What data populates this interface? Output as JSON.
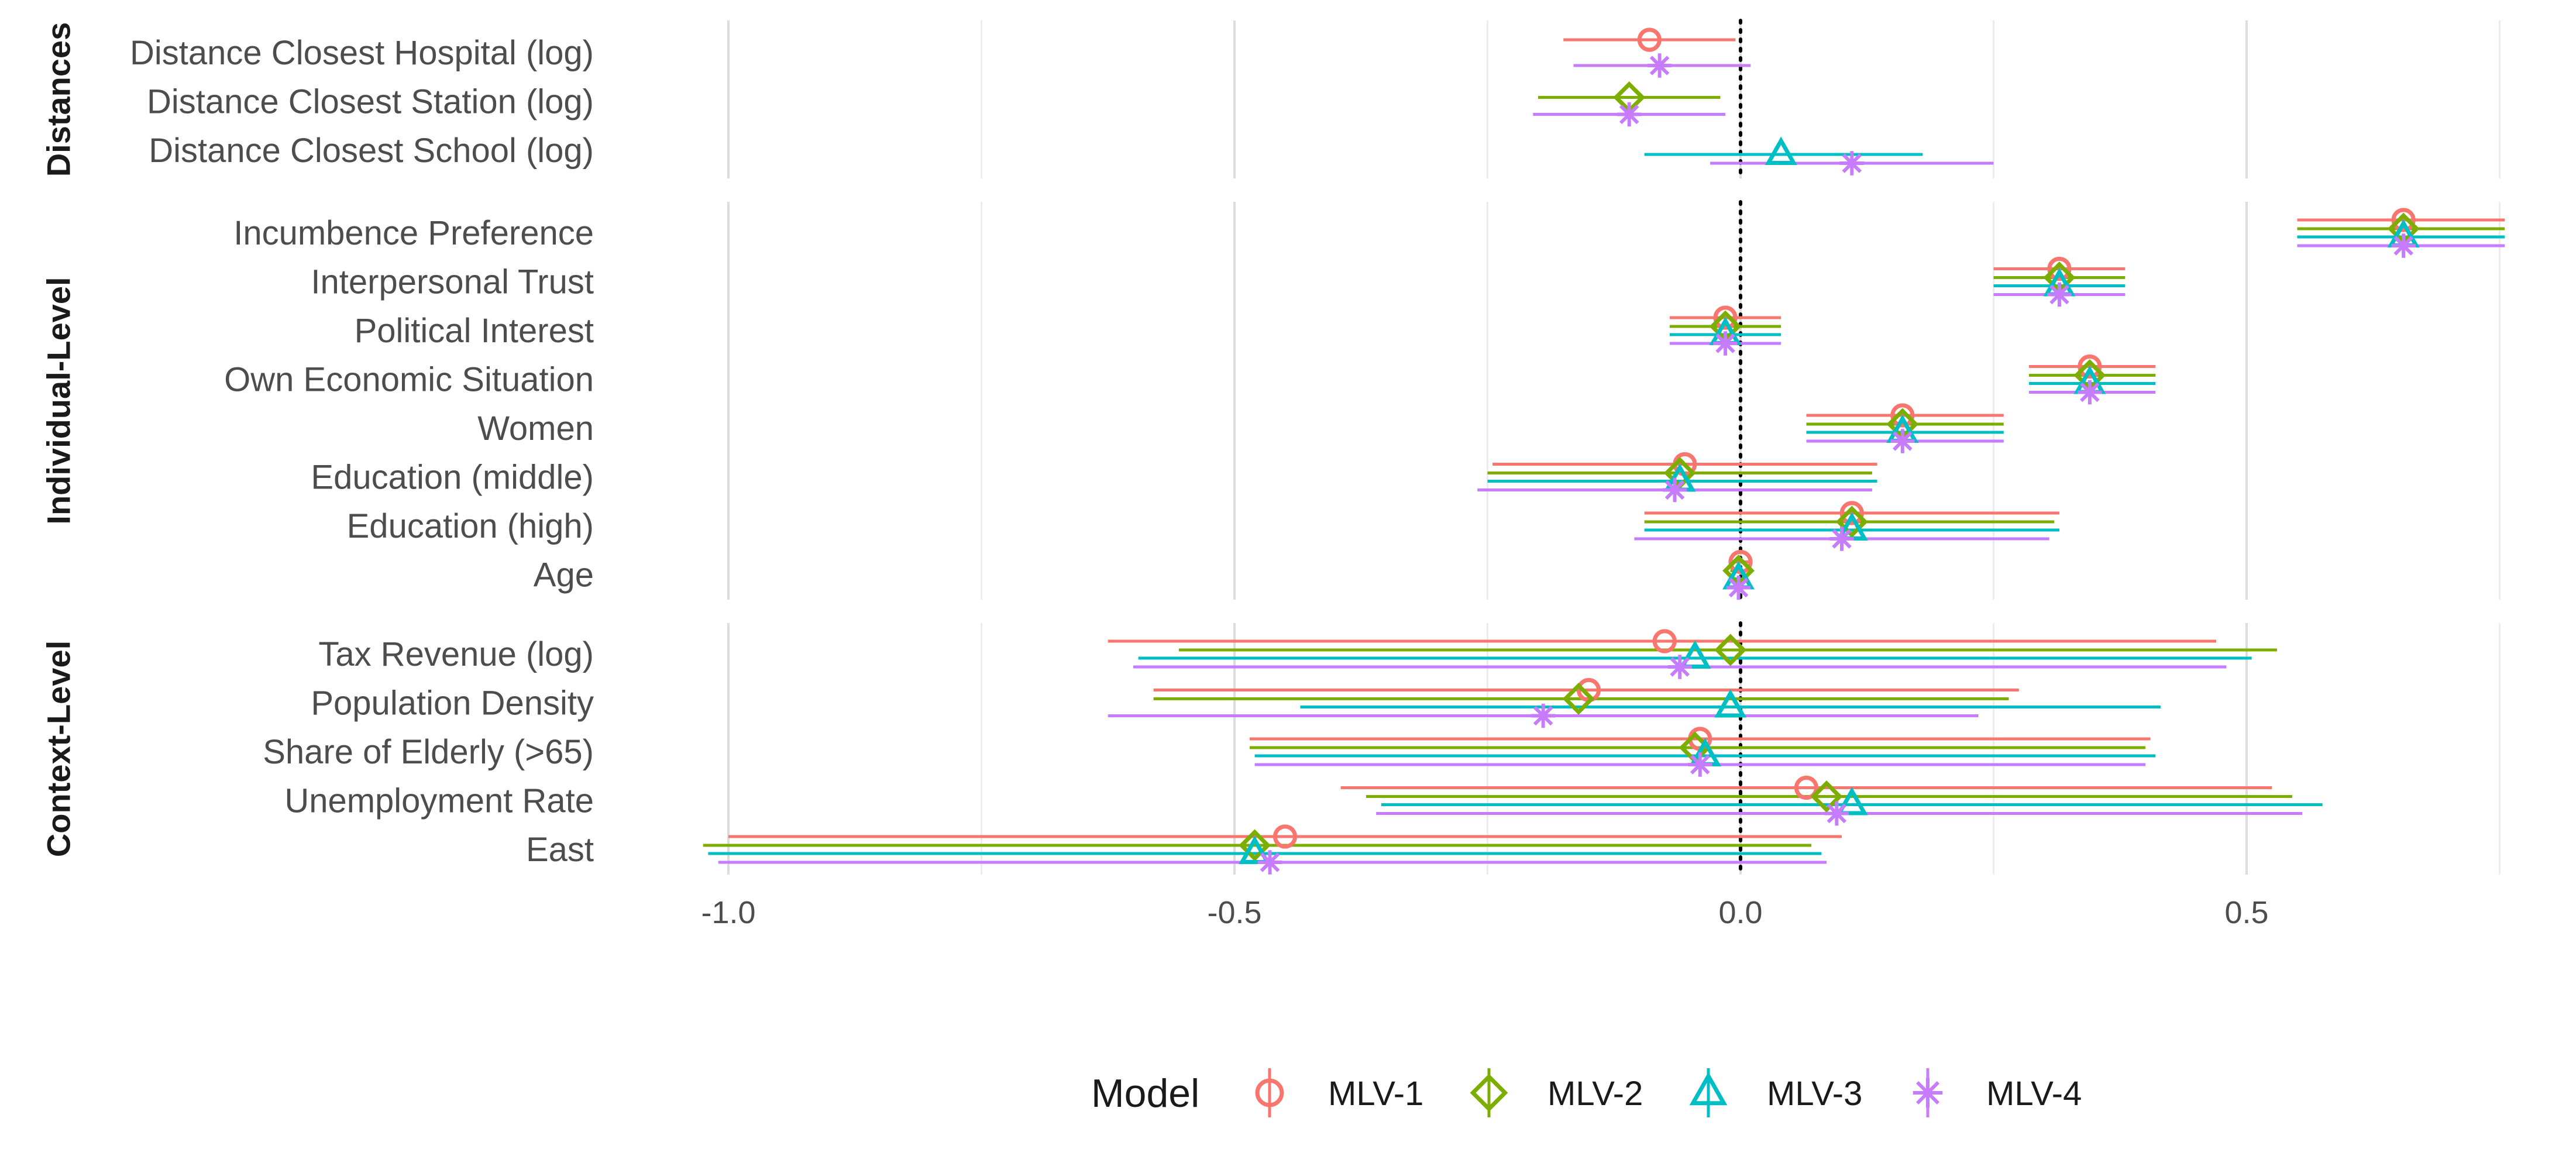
{
  "chart_data": {
    "type": "coefficient-plot",
    "xlim": [
      -1.07,
      0.78
    ],
    "x_ticks": [
      -1.0,
      -0.5,
      0.0,
      0.5
    ],
    "x_tick_labels": [
      "-1.0",
      "-0.5",
      "0.0",
      "0.5"
    ],
    "minor_gridlines": [
      -0.75,
      -0.25,
      0.25,
      0.75
    ],
    "reference_line": 0.0,
    "legend": {
      "title": "Model",
      "position": "bottom"
    },
    "series": [
      {
        "name": "MLV-1",
        "color": "#F8766D",
        "shape": "circle"
      },
      {
        "name": "MLV-2",
        "color": "#7CAE00",
        "shape": "diamond"
      },
      {
        "name": "MLV-3",
        "color": "#00BFC4",
        "shape": "triangle"
      },
      {
        "name": "MLV-4",
        "color": "#C77CFF",
        "shape": "asterisk"
      }
    ],
    "facets": [
      {
        "label": "Distances",
        "terms": [
          {
            "label": "Distance Closest Hospital (log)",
            "estimates": [
              {
                "model": "MLV-1",
                "est": -0.09,
                "lo": -0.175,
                "hi": -0.005
              },
              {
                "model": "MLV-4",
                "est": -0.08,
                "lo": -0.165,
                "hi": 0.01
              }
            ]
          },
          {
            "label": "Distance Closest Station (log)",
            "estimates": [
              {
                "model": "MLV-2",
                "est": -0.11,
                "lo": -0.2,
                "hi": -0.02
              },
              {
                "model": "MLV-4",
                "est": -0.11,
                "lo": -0.205,
                "hi": -0.015
              }
            ]
          },
          {
            "label": "Distance Closest School (log)",
            "estimates": [
              {
                "model": "MLV-3",
                "est": 0.04,
                "lo": -0.095,
                "hi": 0.18
              },
              {
                "model": "MLV-4",
                "est": 0.11,
                "lo": -0.03,
                "hi": 0.25
              }
            ]
          }
        ]
      },
      {
        "label": "Individual-Level",
        "terms": [
          {
            "label": "Incumbence Preference",
            "estimates": [
              {
                "model": "MLV-1",
                "est": 0.655,
                "lo": 0.55,
                "hi": 0.755
              },
              {
                "model": "MLV-2",
                "est": 0.655,
                "lo": 0.55,
                "hi": 0.755
              },
              {
                "model": "MLV-3",
                "est": 0.655,
                "lo": 0.55,
                "hi": 0.755
              },
              {
                "model": "MLV-4",
                "est": 0.655,
                "lo": 0.55,
                "hi": 0.755
              }
            ]
          },
          {
            "label": "Interpersonal Trust",
            "estimates": [
              {
                "model": "MLV-1",
                "est": 0.315,
                "lo": 0.25,
                "hi": 0.38
              },
              {
                "model": "MLV-2",
                "est": 0.315,
                "lo": 0.25,
                "hi": 0.38
              },
              {
                "model": "MLV-3",
                "est": 0.315,
                "lo": 0.25,
                "hi": 0.38
              },
              {
                "model": "MLV-4",
                "est": 0.315,
                "lo": 0.25,
                "hi": 0.38
              }
            ]
          },
          {
            "label": "Political Interest",
            "estimates": [
              {
                "model": "MLV-1",
                "est": -0.015,
                "lo": -0.07,
                "hi": 0.04
              },
              {
                "model": "MLV-2",
                "est": -0.015,
                "lo": -0.07,
                "hi": 0.04
              },
              {
                "model": "MLV-3",
                "est": -0.015,
                "lo": -0.07,
                "hi": 0.04
              },
              {
                "model": "MLV-4",
                "est": -0.015,
                "lo": -0.07,
                "hi": 0.04
              }
            ]
          },
          {
            "label": "Own Economic Situation",
            "estimates": [
              {
                "model": "MLV-1",
                "est": 0.345,
                "lo": 0.285,
                "hi": 0.41
              },
              {
                "model": "MLV-2",
                "est": 0.345,
                "lo": 0.285,
                "hi": 0.41
              },
              {
                "model": "MLV-3",
                "est": 0.345,
                "lo": 0.285,
                "hi": 0.41
              },
              {
                "model": "MLV-4",
                "est": 0.345,
                "lo": 0.285,
                "hi": 0.41
              }
            ]
          },
          {
            "label": "Women",
            "estimates": [
              {
                "model": "MLV-1",
                "est": 0.16,
                "lo": 0.065,
                "hi": 0.26
              },
              {
                "model": "MLV-2",
                "est": 0.16,
                "lo": 0.065,
                "hi": 0.26
              },
              {
                "model": "MLV-3",
                "est": 0.16,
                "lo": 0.065,
                "hi": 0.26
              },
              {
                "model": "MLV-4",
                "est": 0.16,
                "lo": 0.065,
                "hi": 0.26
              }
            ]
          },
          {
            "label": "Education (middle)",
            "estimates": [
              {
                "model": "MLV-1",
                "est": -0.055,
                "lo": -0.245,
                "hi": 0.135
              },
              {
                "model": "MLV-2",
                "est": -0.06,
                "lo": -0.25,
                "hi": 0.13
              },
              {
                "model": "MLV-3",
                "est": -0.06,
                "lo": -0.25,
                "hi": 0.135
              },
              {
                "model": "MLV-4",
                "est": -0.065,
                "lo": -0.26,
                "hi": 0.13
              }
            ]
          },
          {
            "label": "Education (high)",
            "estimates": [
              {
                "model": "MLV-1",
                "est": 0.11,
                "lo": -0.095,
                "hi": 0.315
              },
              {
                "model": "MLV-2",
                "est": 0.11,
                "lo": -0.095,
                "hi": 0.31
              },
              {
                "model": "MLV-3",
                "est": 0.11,
                "lo": -0.095,
                "hi": 0.315
              },
              {
                "model": "MLV-4",
                "est": 0.1,
                "lo": -0.105,
                "hi": 0.305
              }
            ]
          },
          {
            "label": "Age",
            "estimates": [
              {
                "model": "MLV-1",
                "est": 0.0,
                "lo": -0.008,
                "hi": 0.008
              },
              {
                "model": "MLV-2",
                "est": -0.002,
                "lo": -0.01,
                "hi": 0.006
              },
              {
                "model": "MLV-3",
                "est": -0.002,
                "lo": -0.01,
                "hi": 0.006
              },
              {
                "model": "MLV-4",
                "est": -0.002,
                "lo": -0.01,
                "hi": 0.006
              }
            ]
          }
        ]
      },
      {
        "label": "Context-Level",
        "terms": [
          {
            "label": "Tax Revenue (log)",
            "estimates": [
              {
                "model": "MLV-1",
                "est": -0.075,
                "lo": -0.625,
                "hi": 0.47
              },
              {
                "model": "MLV-2",
                "est": -0.01,
                "lo": -0.555,
                "hi": 0.53
              },
              {
                "model": "MLV-3",
                "est": -0.045,
                "lo": -0.595,
                "hi": 0.505
              },
              {
                "model": "MLV-4",
                "est": -0.06,
                "lo": -0.6,
                "hi": 0.48
              }
            ]
          },
          {
            "label": "Population Density",
            "estimates": [
              {
                "model": "MLV-1",
                "est": -0.15,
                "lo": -0.58,
                "hi": 0.275
              },
              {
                "model": "MLV-2",
                "est": -0.16,
                "lo": -0.58,
                "hi": 0.265
              },
              {
                "model": "MLV-3",
                "est": -0.01,
                "lo": -0.435,
                "hi": 0.415
              },
              {
                "model": "MLV-4",
                "est": -0.195,
                "lo": -0.625,
                "hi": 0.235
              }
            ]
          },
          {
            "label": "Share of Elderly (>65)",
            "estimates": [
              {
                "model": "MLV-1",
                "est": -0.04,
                "lo": -0.485,
                "hi": 0.405
              },
              {
                "model": "MLV-2",
                "est": -0.045,
                "lo": -0.485,
                "hi": 0.4
              },
              {
                "model": "MLV-3",
                "est": -0.035,
                "lo": -0.48,
                "hi": 0.41
              },
              {
                "model": "MLV-4",
                "est": -0.04,
                "lo": -0.48,
                "hi": 0.4
              }
            ]
          },
          {
            "label": "Unemployment Rate",
            "estimates": [
              {
                "model": "MLV-1",
                "est": 0.065,
                "lo": -0.395,
                "hi": 0.525
              },
              {
                "model": "MLV-2",
                "est": 0.085,
                "lo": -0.37,
                "hi": 0.545
              },
              {
                "model": "MLV-3",
                "est": 0.11,
                "lo": -0.355,
                "hi": 0.575
              },
              {
                "model": "MLV-4",
                "est": 0.095,
                "lo": -0.36,
                "hi": 0.555
              }
            ]
          },
          {
            "label": "East",
            "estimates": [
              {
                "model": "MLV-1",
                "est": -0.45,
                "lo": -1.0,
                "hi": 0.1
              },
              {
                "model": "MLV-2",
                "est": -0.48,
                "lo": -1.025,
                "hi": 0.07
              },
              {
                "model": "MLV-3",
                "est": -0.48,
                "lo": -1.02,
                "hi": 0.08
              },
              {
                "model": "MLV-4",
                "est": -0.465,
                "lo": -1.01,
                "hi": 0.085
              }
            ]
          }
        ]
      }
    ]
  }
}
